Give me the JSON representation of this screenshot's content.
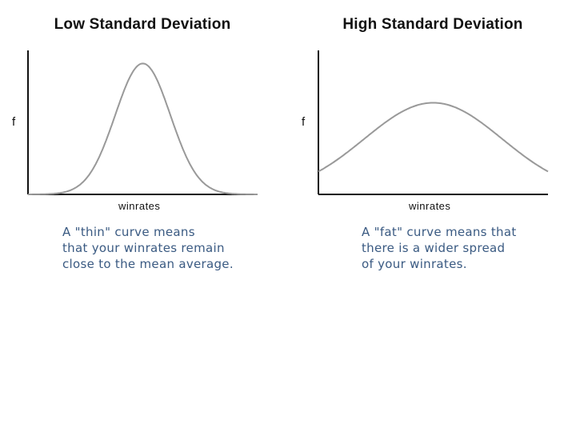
{
  "chart_data": [
    {
      "type": "line",
      "title": "Low Standard Deviation",
      "xlabel": "winrates",
      "ylabel": "f",
      "annotation": [
        "A \"thin\" curve means",
        "that your winrates remain",
        "close to the mean average."
      ],
      "series": [
        {
          "name": "",
          "shape": "normal-curve",
          "mean": 0.5,
          "sd": 0.12,
          "peak": 1.0
        }
      ],
      "xlim": [
        0,
        1
      ],
      "ylim": [
        0,
        1.1
      ],
      "grid": false
    },
    {
      "type": "line",
      "title": "High Standard Deviation",
      "xlabel": "winrates",
      "ylabel": "f",
      "annotation": [
        "A \"fat\" curve means that",
        "there is a wider spread",
        "of your winrates."
      ],
      "series": [
        {
          "name": "",
          "shape": "normal-curve",
          "mean": 0.5,
          "sd": 0.3,
          "peak": 0.7
        }
      ],
      "xlim": [
        0,
        1
      ],
      "ylim": [
        0,
        1.1
      ],
      "grid": false
    }
  ],
  "colors": {
    "axis": "#111111",
    "curve": "#999999",
    "caption": "#3a5a82"
  }
}
